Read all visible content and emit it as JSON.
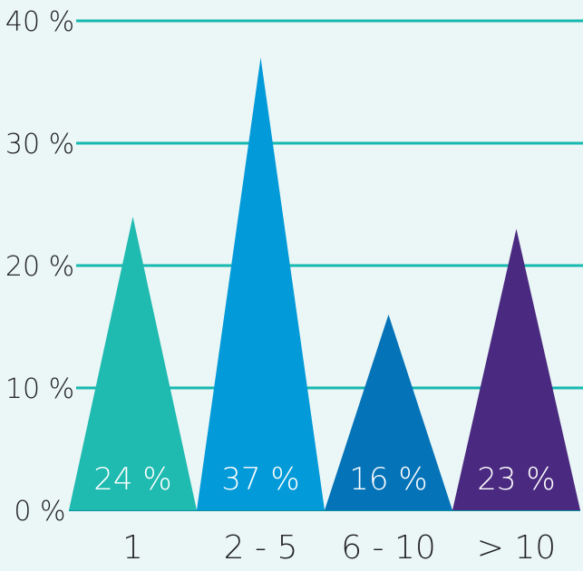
{
  "chart_data": {
    "type": "bar",
    "title": "",
    "xlabel": "",
    "ylabel": "",
    "categories": [
      "1",
      "2 - 5",
      "6 - 10",
      "> 10"
    ],
    "values": [
      24,
      37,
      16,
      23
    ],
    "data_labels": [
      "24 %",
      "37 %",
      "16 %",
      "23 %"
    ],
    "ylim": [
      0,
      40
    ],
    "yticks": [
      0,
      10,
      20,
      30,
      40
    ],
    "ytick_labels": [
      "0 %",
      "10 %",
      "20 %",
      "30 %",
      "40 %"
    ],
    "grid": true,
    "mark_shape": "triangle",
    "colors": [
      "#1fbab0",
      "#029ad8",
      "#0573b8",
      "#4a2a80"
    ],
    "grid_color": "#16b8b0",
    "background": "#ebf6f6"
  }
}
